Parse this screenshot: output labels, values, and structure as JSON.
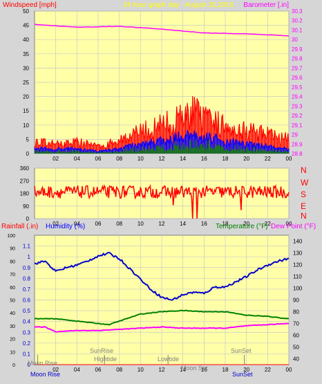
{
  "top_labels": {
    "left": "Windspeed [mph]",
    "center": "24 hour graph day - August 25,2016",
    "right": "Barometer [.in]"
  },
  "wind_dir_letters": [
    "N",
    "W",
    "S",
    "E",
    "N"
  ],
  "bottom_labels": {
    "rain": "Rainfall (.in)",
    "humidity": "Humidity (%)",
    "temperature": "Temperature (°F)",
    "dewpoint": "Dew Point (°F)"
  },
  "events": {
    "moonrise_top": "Moon Rise",
    "moonrise_bottom": "Moon Rise",
    "sunrise": "SunRise",
    "hightide": "Hightide",
    "lowtide": "Lowtide",
    "moonset": "Moon Set",
    "sunset_top": "SunSet",
    "sunset_bottom": "SunSet"
  },
  "colors": {
    "plot_bg": "#ffffa8",
    "frame_bg": "#d6d6d6",
    "wind_gust": "#ff0000",
    "wind_avg": "#0000ff",
    "wind_low": "#008000",
    "barometer": "#ff00ff",
    "wind_dir": "#ff0000",
    "humidity": "#0000cc",
    "temperature": "#008000",
    "dewpoint": "#ff00ff",
    "red_label": "#ff0000",
    "blue_label": "#0000ff",
    "green_label": "#008000",
    "magenta_label": "#ff00ff",
    "event_text": "#808080"
  },
  "chart_data": [
    {
      "type": "line",
      "name": "wind-barometer",
      "x_ticks": [
        "02",
        "04",
        "06",
        "08",
        "10",
        "12",
        "14",
        "16",
        "18",
        "20",
        "22",
        "00"
      ],
      "ylim_left": [
        0,
        50
      ],
      "y_ticks_left": [
        0,
        5,
        10,
        15,
        20,
        25,
        30,
        35,
        40,
        45,
        50
      ],
      "ylim_right": [
        28.8,
        30.3
      ],
      "y_ticks_right": [
        "28.8",
        "28.9",
        "29",
        "29.1",
        "29.2",
        "29.3",
        "29.4",
        "29.5",
        "29.6",
        "29.7",
        "29.8",
        "29.9",
        "30",
        "30.1",
        "30.2",
        "30.3"
      ],
      "grid": true,
      "series": [
        {
          "name": "Barometer",
          "hours": [
            0,
            4,
            8,
            12,
            16,
            20,
            24
          ],
          "values": [
            30.16,
            30.13,
            30.14,
            30.11,
            30.07,
            30.06,
            30.04
          ]
        }
      ],
      "wind_gust_envelope": {
        "hours": [
          0,
          2,
          4,
          6,
          7,
          8,
          10,
          12,
          14,
          15,
          16,
          18,
          20,
          22,
          24
        ],
        "values": [
          5,
          4,
          5,
          3,
          4,
          6,
          9,
          12,
          15,
          18,
          14,
          12,
          10,
          8,
          6
        ]
      },
      "wind_avg_envelope": {
        "hours": [
          0,
          2,
          4,
          6,
          8,
          10,
          12,
          14,
          16,
          18,
          20,
          22,
          24
        ],
        "values": [
          2,
          2,
          2,
          1,
          2,
          4,
          5,
          7,
          7,
          5,
          4,
          3,
          2
        ]
      }
    },
    {
      "type": "line",
      "name": "wind-direction",
      "x_ticks": [
        "02",
        "04",
        "06",
        "08",
        "10",
        "12",
        "14",
        "16",
        "18",
        "20",
        "22",
        "00"
      ],
      "ylim": [
        0,
        360
      ],
      "y_ticks": [
        0,
        90,
        180,
        270,
        360
      ],
      "grid": true,
      "series": [
        {
          "name": "Wind Direction",
          "mean_deg": 190,
          "dips": [
            {
              "hour": 14.9,
              "deg": 0
            },
            {
              "hour": 15.3,
              "deg": 0
            },
            {
              "hour": 13.1,
              "deg": 95
            },
            {
              "hour": 19.5,
              "deg": 60
            }
          ]
        }
      ]
    },
    {
      "type": "line",
      "name": "rain-humidity-temperature",
      "x_ticks": [
        "02",
        "04",
        "06",
        "08",
        "10",
        "12",
        "14",
        "16",
        "18",
        "20",
        "22",
        "00"
      ],
      "rain_ticks": [
        "0",
        "0.1",
        "0.2",
        "0.3",
        "0.4",
        "0.5",
        "0.6",
        "0.7",
        "0.8",
        "0.9",
        "1",
        "1.1"
      ],
      "ylim_rain": [
        0,
        1.2
      ],
      "humidity_ticks": [
        0,
        10,
        20,
        30,
        40,
        50,
        60,
        70,
        80,
        90,
        100
      ],
      "ylim_humidity": [
        0,
        100
      ],
      "temp_ticks": [
        40,
        50,
        60,
        70,
        80,
        90,
        100,
        110,
        120,
        130,
        140
      ],
      "ylim_temp": [
        35,
        145
      ],
      "grid": true,
      "series": [
        {
          "name": "Humidity",
          "hours": [
            0,
            1,
            2,
            3,
            4,
            5,
            6,
            7,
            8,
            9,
            10,
            11,
            12,
            13,
            14,
            15,
            16,
            17,
            18,
            19,
            20,
            21,
            22,
            23,
            24
          ],
          "values": [
            78,
            80,
            72,
            75,
            77,
            80,
            84,
            86,
            82,
            74,
            66,
            58,
            52,
            50,
            54,
            56,
            55,
            60,
            60,
            64,
            68,
            73,
            77,
            80,
            82
          ]
        },
        {
          "name": "Temperature",
          "hours": [
            0,
            2,
            4,
            6,
            7,
            8,
            10,
            12,
            14,
            16,
            18,
            20,
            22,
            24
          ],
          "values": [
            74,
            74,
            72,
            70,
            69,
            72,
            78,
            80,
            81,
            80,
            80,
            77,
            76,
            74
          ]
        },
        {
          "name": "Dew Point",
          "hours": [
            0,
            1,
            2,
            4,
            6,
            8,
            10,
            12,
            14,
            16,
            18,
            20,
            22,
            24
          ],
          "values": [
            67,
            67,
            63,
            64,
            64,
            65,
            66,
            67,
            66,
            66,
            66,
            68,
            69,
            70
          ]
        },
        {
          "name": "Rainfall",
          "hours": [
            0,
            24
          ],
          "values": [
            0,
            0
          ]
        }
      ]
    }
  ]
}
